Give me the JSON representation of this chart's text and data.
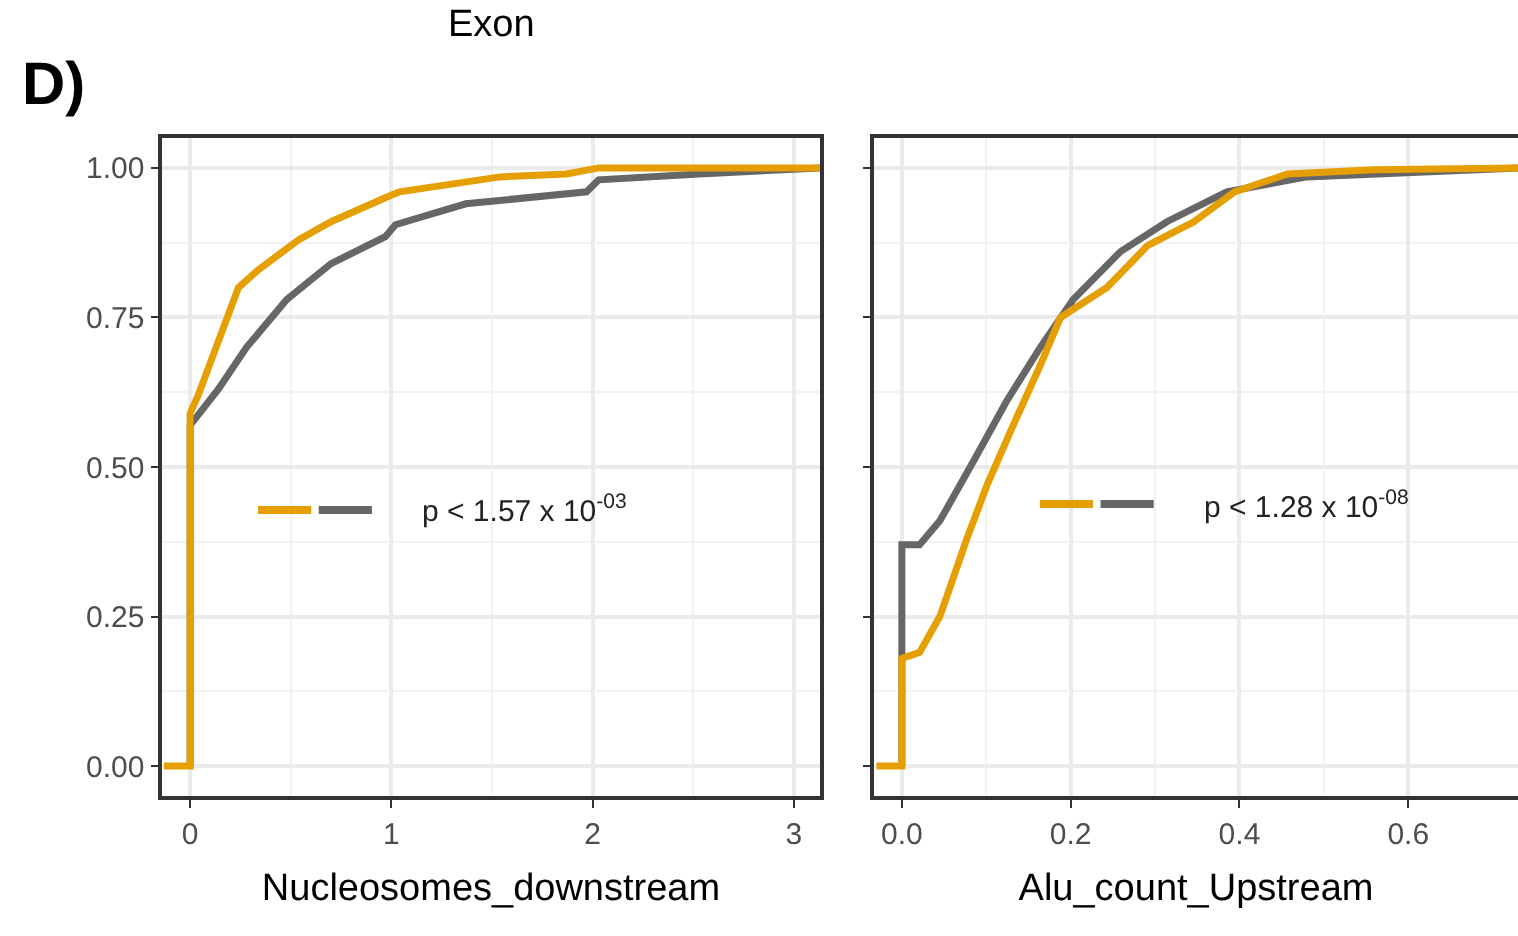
{
  "chart_data": [
    {
      "type": "line",
      "title": "Exon",
      "xlabel": "Nucleosomes_downstream",
      "annotations": [
        "D)",
        "p < 1.57 x 10$^{-03}$"
      ],
      "xlim": [
        -0.14,
        3.13
      ],
      "ylim": [
        -0.05,
        1.05
      ],
      "xticks": [
        0,
        1,
        2,
        3
      ],
      "yticks": [
        {
          "value": 0,
          "label": "0.00"
        },
        {
          "value": 0.25,
          "label": "0.25"
        },
        {
          "value": 0.5,
          "label": "0.50"
        },
        {
          "value": 0.75,
          "label": "0.75"
        },
        {
          "value": 1,
          "label": "1.00"
        }
      ],
      "grid": true,
      "series": [
        {
          "color": "#666666",
          "x": [
            0,
            0,
            0.14,
            0.28,
            0.48,
            0.7,
            0.97,
            1.02,
            1.37,
            1.97,
            2.03,
            2.53,
            3.13
          ],
          "values": [
            0,
            0.57,
            0.63,
            0.7,
            0.78,
            0.84,
            0.885,
            0.905,
            0.94,
            0.96,
            0.98,
            0.99,
            1.0
          ]
        },
        {
          "color": "#e69f00",
          "x": [
            -0.13,
            0,
            0,
            0.04,
            0.14,
            0.24,
            0.34,
            0.54,
            0.7,
            0.97,
            1.04,
            1.24,
            1.54,
            1.87,
            2.03,
            3.13
          ],
          "values": [
            0,
            0,
            0.59,
            0.62,
            0.71,
            0.8,
            0.83,
            0.88,
            0.91,
            0.95,
            0.96,
            0.97,
            0.985,
            0.99,
            1.0,
            1.0
          ]
        }
      ]
    },
    {
      "type": "line",
      "xlabel": "Alu_count_Upstream",
      "annotations": [
        "p < 1.28 x 10$^{-08}$"
      ],
      "xlim": [
        -0.033,
        0.73
      ],
      "ylim": [
        -0.05,
        1.05
      ],
      "xticks": [
        {
          "value": 0,
          "label": "0.0"
        },
        {
          "value": 0.2,
          "label": "0.2"
        },
        {
          "value": 0.4,
          "label": "0.4"
        },
        {
          "value": 0.6,
          "label": "0.6"
        }
      ],
      "yticks": [
        0,
        0.25,
        0.5,
        0.75,
        1
      ],
      "tick_labels": "x",
      "grid": true,
      "series": [
        {
          "color": "#666666",
          "x": [
            0,
            0,
            0.021,
            0.045,
            0.085,
            0.124,
            0.164,
            0.203,
            0.259,
            0.314,
            0.385,
            0.48,
            0.73
          ],
          "values": [
            0,
            0.37,
            0.37,
            0.41,
            0.51,
            0.61,
            0.7,
            0.78,
            0.86,
            0.91,
            0.96,
            0.985,
            1.0
          ]
        },
        {
          "color": "#e69f00",
          "x": [
            -0.03,
            0,
            0,
            0.021,
            0.045,
            0.077,
            0.101,
            0.132,
            0.164,
            0.188,
            0.243,
            0.291,
            0.346,
            0.394,
            0.457,
            0.56,
            0.73
          ],
          "values": [
            0,
            0,
            0.18,
            0.19,
            0.25,
            0.38,
            0.47,
            0.57,
            0.67,
            0.75,
            0.8,
            0.87,
            0.91,
            0.96,
            0.99,
            0.997,
            1.0
          ]
        }
      ]
    }
  ]
}
